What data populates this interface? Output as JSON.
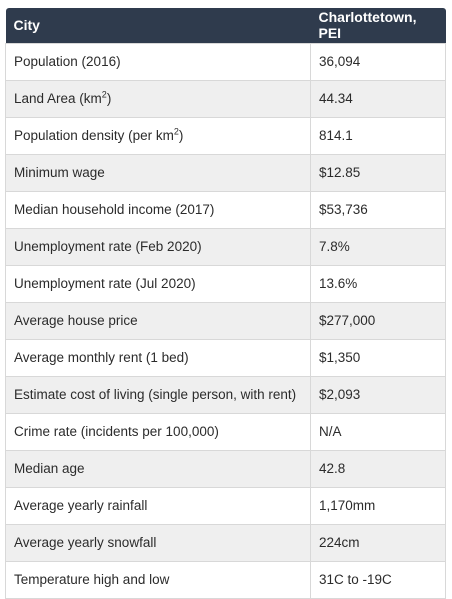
{
  "table": {
    "headers": [
      "City",
      "Charlottetown, PEI"
    ],
    "rows": [
      {
        "label": "Population (2016)",
        "value": "36,094"
      },
      {
        "label_pre": "Land Area (km",
        "label_sup": "2",
        "label_post": ")",
        "value": "44.34"
      },
      {
        "label_pre": "Population density (per km",
        "label_sup": "2",
        "label_post": ")",
        "value": "814.1"
      },
      {
        "label": "Minimum wage",
        "value": "$12.85"
      },
      {
        "label": "Median household income (2017)",
        "value": "$53,736"
      },
      {
        "label": "Unemployment rate (Feb 2020)",
        "value": "7.8%"
      },
      {
        "label": "Unemployment rate (Jul 2020)",
        "value": "13.6%"
      },
      {
        "label": "Average house price",
        "value": "$277,000"
      },
      {
        "label": "Average monthly rent (1 bed)",
        "value": "$1,350"
      },
      {
        "label": "Estimate cost of living (single person, with rent)",
        "value": "$2,093"
      },
      {
        "label": "Crime rate (incidents per 100,000)",
        "value": "N/A"
      },
      {
        "label": "Median age",
        "value": "42.8"
      },
      {
        "label": "Average yearly rainfall",
        "value": "1,170mm"
      },
      {
        "label": "Average yearly snowfall",
        "value": "224cm"
      },
      {
        "label": "Temperature high and low",
        "value": "31C to -19C"
      }
    ]
  }
}
